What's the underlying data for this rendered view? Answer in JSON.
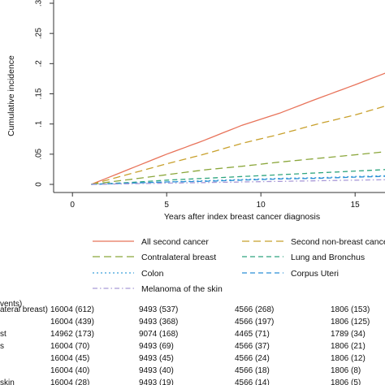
{
  "chart_data": {
    "type": "line",
    "xlabel": "Years after index breast cancer diagnosis",
    "ylabel": "Cumulative incidence",
    "xlim": [
      -1,
      17.5
    ],
    "ylim": [
      0,
      0.3
    ],
    "x_ticks": [
      0,
      5,
      10,
      15
    ],
    "y_ticks": [
      0,
      0.05,
      0.1,
      0.15,
      0.2,
      0.25,
      0.3
    ],
    "y_tick_labels": [
      "0",
      ".05",
      ".1",
      ".15",
      ".2",
      ".25",
      ".3"
    ],
    "grid": false,
    "legend_position": "below",
    "series": [
      {
        "name": "All second cancer",
        "color": "#e8735a",
        "dash": "solid",
        "x": [
          1,
          3,
          5,
          7,
          9,
          11,
          13,
          15,
          17.5
        ],
        "y": [
          0,
          0.025,
          0.05,
          0.073,
          0.098,
          0.118,
          0.142,
          0.165,
          0.195
        ]
      },
      {
        "name": "Second non-breast cancer",
        "color": "#c8a02c",
        "dash": "longdash",
        "x": [
          1,
          3,
          5,
          7,
          9,
          11,
          13,
          15,
          17.5
        ],
        "y": [
          0,
          0.017,
          0.034,
          0.05,
          0.068,
          0.083,
          0.1,
          0.115,
          0.138
        ]
      },
      {
        "name": "Contralateral breast",
        "color": "#8aa63a",
        "dash": "longdash",
        "x": [
          1,
          3,
          5,
          7,
          9,
          11,
          13,
          15,
          17.5
        ],
        "y": [
          0,
          0.008,
          0.016,
          0.024,
          0.03,
          0.037,
          0.043,
          0.049,
          0.057
        ]
      },
      {
        "name": "Lung and Bronchus",
        "color": "#2fa57f",
        "dash": "dash",
        "x": [
          1,
          3,
          5,
          7,
          9,
          11,
          13,
          15,
          17.5
        ],
        "y": [
          0,
          0.003,
          0.007,
          0.01,
          0.013,
          0.016,
          0.019,
          0.022,
          0.026
        ]
      },
      {
        "name": "Colon",
        "color": "#3a9fd9",
        "dash": "dot",
        "x": [
          1,
          3,
          5,
          7,
          9,
          11,
          13,
          15,
          17.5
        ],
        "y": [
          0,
          0.002,
          0.004,
          0.006,
          0.008,
          0.01,
          0.011,
          0.013,
          0.015
        ]
      },
      {
        "name": "Corpus Uteri",
        "color": "#2b8fd6",
        "dash": "dash",
        "x": [
          1,
          3,
          5,
          7,
          9,
          11,
          13,
          15,
          17.5
        ],
        "y": [
          0,
          0.002,
          0.004,
          0.005,
          0.007,
          0.009,
          0.01,
          0.012,
          0.014
        ]
      },
      {
        "name": "Melanoma of the skin",
        "color": "#a99ad8",
        "dash": "dashdot",
        "x": [
          1,
          3,
          5,
          7,
          9,
          11,
          13,
          15,
          17.5
        ],
        "y": [
          0,
          0.001,
          0.002,
          0.003,
          0.004,
          0.005,
          0.006,
          0.007,
          0.008
        ]
      }
    ],
    "risk_table": {
      "header": "vents)",
      "columns_x": [
        0,
        5,
        10,
        15
      ],
      "rows": [
        {
          "label": "ateral breast)",
          "values": [
            "16004 (612)",
            "9493 (537)",
            "4566 (268)",
            "1806 (153)"
          ]
        },
        {
          "label": "",
          "values": [
            "16004 (439)",
            "9493 (368)",
            "4566 (197)",
            "1806 (125)"
          ]
        },
        {
          "label": "st",
          "values": [
            "14962 (173)",
            "9074 (168)",
            "4465 (71)",
            "1789 (34)"
          ]
        },
        {
          "label": "s",
          "values": [
            "16004 (70)",
            "9493 (69)",
            "4566 (37)",
            "1806 (21)"
          ]
        },
        {
          "label": "",
          "values": [
            "16004 (45)",
            "9493 (45)",
            "4566 (24)",
            "1806 (12)"
          ]
        },
        {
          "label": "",
          "values": [
            "16004 (40)",
            "9493 (40)",
            "4566 (18)",
            "1806 (8)"
          ]
        },
        {
          "label": "skin",
          "values": [
            "16004 (28)",
            "9493 (19)",
            "4566 (14)",
            "1806 (5)"
          ]
        }
      ]
    }
  }
}
